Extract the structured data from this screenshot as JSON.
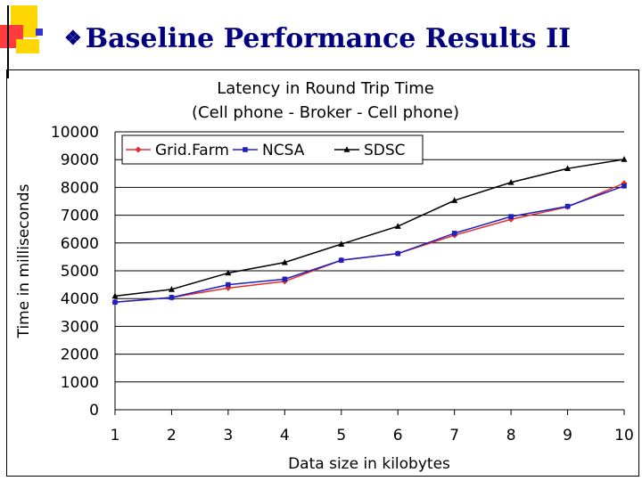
{
  "slide": {
    "bullet": "❖",
    "title": "Baseline Performance Results II"
  },
  "colors": {
    "title": "#000080",
    "deco_yellow": "#ffd700",
    "deco_red": "#ff3333",
    "deco_blue": "#3333cc"
  },
  "chart_data": {
    "type": "line",
    "title": "Latency in Round Trip Time",
    "subtitle": "(Cell phone - Broker - Cell phone)",
    "xlabel": "Data size in kilobytes",
    "ylabel": "Time in milliseconds",
    "categories": [
      "1",
      "2",
      "3",
      "4",
      "5",
      "6",
      "7",
      "8",
      "9",
      "10"
    ],
    "ylim": [
      0,
      10000
    ],
    "yticks": [
      "0",
      "1000",
      "2000",
      "3000",
      "4000",
      "5000",
      "6000",
      "7000",
      "8000",
      "9000",
      "10000"
    ],
    "grid": true,
    "legend_position": "top",
    "series": [
      {
        "name": "Grid.Farm",
        "color": "#e03030",
        "marker": "diamond",
        "values": [
          3870,
          4040,
          4380,
          4620,
          5380,
          5620,
          6280,
          6850,
          7300,
          8150
        ]
      },
      {
        "name": "NCSA",
        "color": "#2020c0",
        "marker": "square",
        "values": [
          3870,
          4040,
          4500,
          4700,
          5380,
          5620,
          6350,
          6950,
          7320,
          8050
        ]
      },
      {
        "name": "SDSC",
        "color": "#000000",
        "marker": "triangle",
        "values": [
          4090,
          4330,
          4920,
          5300,
          5960,
          6600,
          7530,
          8180,
          8680,
          9010
        ]
      }
    ]
  }
}
